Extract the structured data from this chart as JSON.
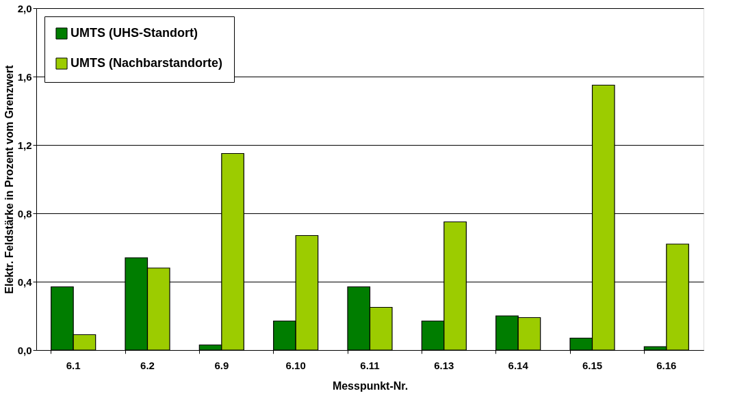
{
  "chart_data": {
    "type": "bar",
    "xlabel": "Messpunkt-Nr.",
    "ylabel": "Elektr. Feldstärke in Prozent vom Grenzwert",
    "categories": [
      "6.1",
      "6.2",
      "6.9",
      "6.10",
      "6.11",
      "6.13",
      "6.14",
      "6.15",
      "6.16"
    ],
    "series": [
      {
        "name": "UMTS (UHS-Standort)",
        "color": "#007d00",
        "values": [
          0.37,
          0.54,
          0.03,
          0.17,
          0.37,
          0.17,
          0.2,
          0.07,
          0.02
        ]
      },
      {
        "name": "UMTS (Nachbarstandorte)",
        "color": "#9ccc00",
        "values": [
          0.09,
          0.48,
          1.15,
          0.67,
          0.25,
          0.75,
          0.19,
          1.55,
          0.62
        ]
      }
    ],
    "ylim": [
      0,
      2.0
    ],
    "yticks": [
      {
        "value": 0,
        "label": "0,0"
      },
      {
        "value": 0.4,
        "label": "0,4"
      },
      {
        "value": 0.8,
        "label": "0,8"
      },
      {
        "value": 1.2,
        "label": "1,2"
      },
      {
        "value": 1.6,
        "label": "1,6"
      },
      {
        "value": 2.0,
        "label": "2,0"
      }
    ],
    "grid": "y",
    "legend": "top left"
  }
}
